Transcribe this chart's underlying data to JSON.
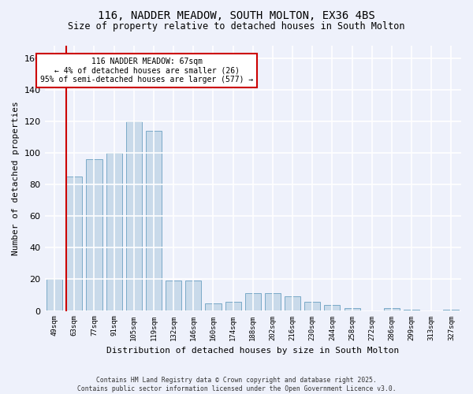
{
  "title1": "116, NADDER MEADOW, SOUTH MOLTON, EX36 4BS",
  "title2": "Size of property relative to detached houses in South Molton",
  "xlabel": "Distribution of detached houses by size in South Molton",
  "ylabel": "Number of detached properties",
  "bin_labels": [
    "49sqm",
    "63sqm",
    "77sqm",
    "91sqm",
    "105sqm",
    "119sqm",
    "132sqm",
    "146sqm",
    "160sqm",
    "174sqm",
    "188sqm",
    "202sqm",
    "216sqm",
    "230sqm",
    "244sqm",
    "258sqm",
    "272sqm",
    "286sqm",
    "299sqm",
    "313sqm",
    "327sqm"
  ],
  "bar_heights": [
    20,
    85,
    96,
    100,
    120,
    114,
    19,
    19,
    5,
    6,
    11,
    11,
    9,
    6,
    4,
    2,
    0,
    2,
    1,
    0,
    1
  ],
  "bar_color": "#c9daea",
  "bar_edge_color": "#7aaac8",
  "vline_color": "#cc0000",
  "vline_pos": 1,
  "annotation_text": "116 NADDER MEADOW: 67sqm\n← 4% of detached houses are smaller (26)\n95% of semi-detached houses are larger (577) →",
  "footer1": "Contains HM Land Registry data © Crown copyright and database right 2025.",
  "footer2": "Contains public sector information licensed under the Open Government Licence v3.0.",
  "background_color": "#eef1fb",
  "grid_color": "#ffffff",
  "ylim": [
    0,
    168
  ],
  "yticks": [
    0,
    20,
    40,
    60,
    80,
    100,
    120,
    140,
    160
  ],
  "bar_width": 0.8
}
